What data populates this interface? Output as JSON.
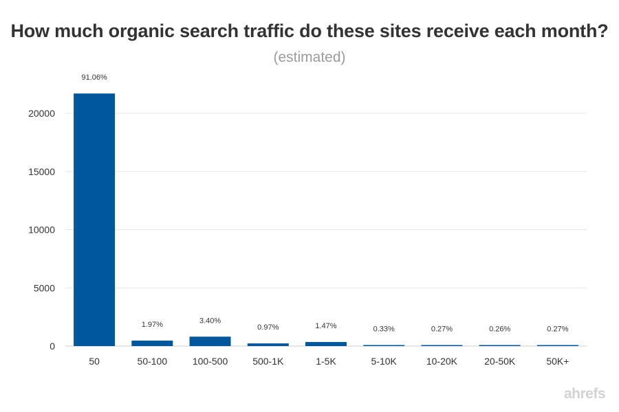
{
  "chart_data": {
    "type": "bar",
    "title": "How much organic search traffic do these sites receive each month?",
    "subtitle": "(estimated)",
    "xlabel": "",
    "ylabel": "",
    "categories": [
      "50",
      "50-100",
      "100-500",
      "500-1K",
      "1-5K",
      "5-10K",
      "10-20K",
      "20-50K",
      "50K+"
    ],
    "values": [
      21700,
      470,
      810,
      230,
      350,
      80,
      64,
      62,
      64
    ],
    "data_labels": [
      "91.06%",
      "1.97%",
      "3.40%",
      "0.97%",
      "1.47%",
      "0.33%",
      "0.27%",
      "0.26%",
      "0.27%"
    ],
    "ylim": [
      0,
      22500
    ],
    "yticks": [
      0,
      5000,
      10000,
      15000,
      20000
    ],
    "grid": true,
    "bar_color": "#00579c",
    "legend": "none"
  },
  "watermark": "ahrefs"
}
